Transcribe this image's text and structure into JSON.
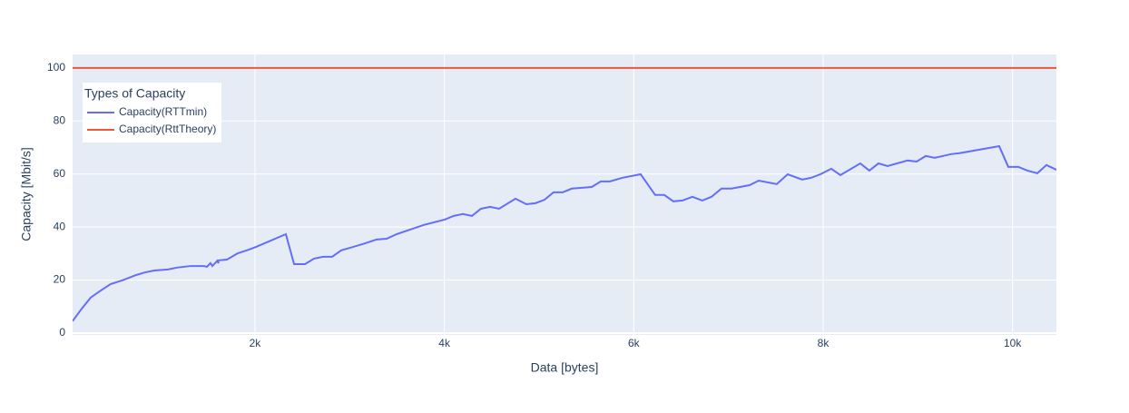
{
  "chart_data": {
    "type": "line",
    "x_label": "Data [bytes]",
    "y_label": "Capacity [Mbit/s]",
    "legend_title": "Types of Capacity",
    "legend_position": "upper left",
    "grid": true,
    "xlim": [
      74,
      10463
    ],
    "ylim": [
      -0.7,
      105.1
    ],
    "xticks": [
      {
        "value": 2000,
        "label": "2k"
      },
      {
        "value": 4000,
        "label": "4k"
      },
      {
        "value": 6000,
        "label": "6k"
      },
      {
        "value": 8000,
        "label": "8k"
      },
      {
        "value": 10000,
        "label": "10k"
      }
    ],
    "yticks": [
      0,
      20,
      40,
      60,
      80,
      100
    ],
    "series": [
      {
        "name": "Capacity(RTTmin)",
        "color": "#636efa",
        "x": [
          74,
          170,
          265,
          361,
          476,
          601,
          745,
          840,
          936,
          1080,
          1176,
          1320,
          1463,
          1492,
          1530,
          1550,
          1598,
          1617,
          1607,
          1703,
          1818,
          1914,
          2010,
          2326,
          2413,
          2528,
          2623,
          2719,
          2815,
          2911,
          3141,
          3284,
          3390,
          3495,
          3783,
          4003,
          4099,
          4195,
          4291,
          4386,
          4482,
          4578,
          4751,
          4866,
          4962,
          5058,
          5153,
          5249,
          5345,
          5556,
          5652,
          5748,
          5882,
          6073,
          6226,
          6322,
          6418,
          6514,
          6619,
          6724,
          6820,
          6926,
          7031,
          7223,
          7319,
          7510,
          7625,
          7779,
          7875,
          7971,
          8086,
          8182,
          8392,
          8488,
          8584,
          8680,
          8891,
          8987,
          9083,
          9179,
          9351,
          9447,
          9859,
          9955,
          10061,
          10157,
          10262,
          10358,
          10463
        ],
        "values": [
          4.5,
          9.2,
          13.4,
          15.8,
          18.5,
          19.9,
          21.9,
          22.9,
          23.6,
          24.0,
          24.7,
          25.3,
          25.3,
          25.0,
          26.4,
          25.3,
          27.1,
          26.4,
          27.4,
          27.7,
          30.1,
          31.2,
          32.5,
          37.3,
          26.0,
          26.0,
          28.1,
          28.8,
          28.8,
          31.2,
          33.6,
          35.3,
          35.6,
          37.3,
          40.8,
          42.8,
          44.2,
          44.9,
          44.2,
          46.9,
          47.6,
          46.9,
          50.7,
          48.6,
          49.0,
          50.3,
          53.1,
          53.1,
          54.5,
          55.1,
          57.2,
          57.2,
          58.6,
          59.9,
          52.1,
          52.1,
          49.7,
          50.0,
          51.4,
          50.0,
          51.4,
          54.5,
          54.5,
          55.8,
          57.5,
          56.2,
          59.9,
          57.9,
          58.6,
          59.9,
          62.0,
          59.6,
          64.0,
          61.3,
          64.0,
          63.0,
          65.1,
          64.7,
          66.8,
          66.1,
          67.5,
          67.9,
          70.5,
          62.7,
          62.7,
          61.3,
          60.3,
          63.4,
          61.6
        ]
      },
      {
        "name": "Capacity(RttTheory)",
        "color": "#EF553B",
        "x": [
          74,
          10463
        ],
        "values": [
          100,
          100
        ]
      }
    ]
  }
}
